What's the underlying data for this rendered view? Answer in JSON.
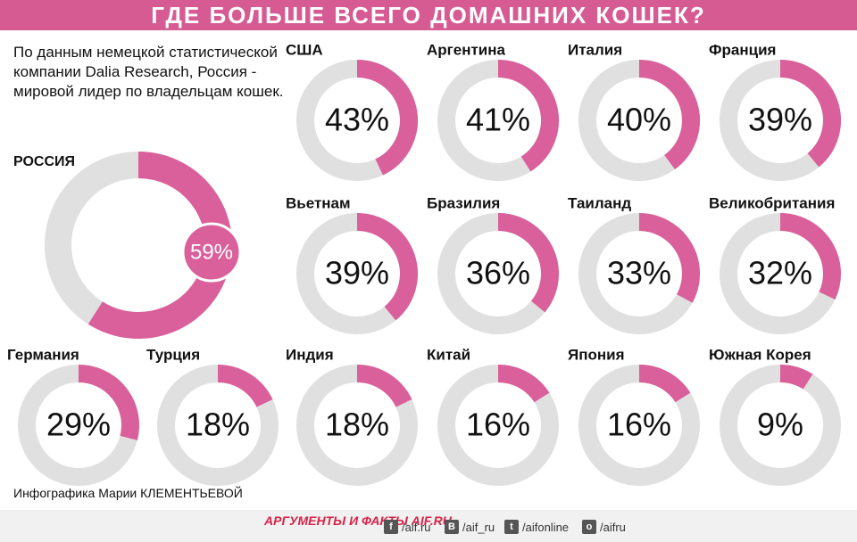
{
  "chart_data": {
    "type": "donut",
    "title": "ГДЕ БОЛЬШЕ ВСЕГО ДОМАШНИХ КОШЕК?",
    "subtitle": "По данным немецкой статистической компании Dalia Research, Россия - мировой лидер по владельцам кошек.",
    "categories": [
      "РОССИЯ",
      "США",
      "Аргентина",
      "Италия",
      "Франция",
      "Вьетнам",
      "Бразилия",
      "Таиланд",
      "Великобритания",
      "Германия",
      "Турция",
      "Индия",
      "Китай",
      "Япония",
      "Южная Корея"
    ],
    "values": [
      59,
      43,
      41,
      40,
      39,
      39,
      36,
      33,
      32,
      29,
      18,
      18,
      16,
      16,
      9
    ],
    "value_labels": [
      "59%",
      "43%",
      "41%",
      "40%",
      "39%",
      "39%",
      "36%",
      "33%",
      "32%",
      "29%",
      "18%",
      "18%",
      "16%",
      "16%",
      "9%"
    ],
    "color": "#d9609a",
    "track_color": "#e1e0e1"
  },
  "footer": {
    "credit": "Инфографика Марии КЛЕМЕНТЬЕВОЙ",
    "logo": "АРГУМЕНТЫ И ФАКТЫ AIF.RU",
    "social": [
      "/aif.ru",
      "/aif_ru",
      "/aifonline",
      "/aifru"
    ]
  }
}
